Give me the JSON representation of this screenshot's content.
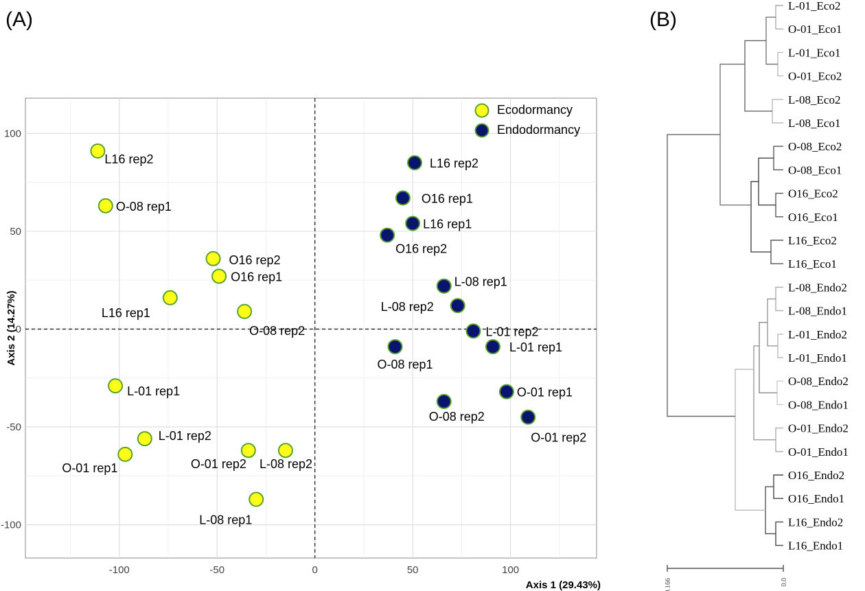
{
  "panel_a_label": "(A)",
  "panel_b_label": "(B)",
  "chart_data": [
    {
      "type": "scatter",
      "xlabel": "Axis 1 (29.43%)",
      "ylabel": "Axis 2 (14.27%)",
      "xlim": [
        -148,
        144
      ],
      "ylim": [
        -117,
        118
      ],
      "xticks": [
        -100,
        -50,
        0,
        50,
        100
      ],
      "yticks": [
        -100,
        -50,
        0,
        50,
        100
      ],
      "grid": true,
      "legend_position": "top-right",
      "colors": {
        "Ecodormancy": "#ffff1a",
        "Endodormancy": "#0a1470",
        "marker_edge": "#5aa02c"
      },
      "series": [
        {
          "name": "Ecodormancy",
          "points": [
            {
              "label": "L16 rep2",
              "x": -111,
              "y": 91
            },
            {
              "label": "O-08 rep1",
              "x": -107,
              "y": 63
            },
            {
              "label": "O16 rep2",
              "x": -52,
              "y": 36
            },
            {
              "label": "O16 rep1",
              "x": -49,
              "y": 27
            },
            {
              "label": "L16 rep1",
              "x": -74,
              "y": 16
            },
            {
              "label": "O-08 rep2",
              "x": -36,
              "y": 9
            },
            {
              "label": "L-01 rep1",
              "x": -102,
              "y": -29
            },
            {
              "label": "L-01 rep2",
              "x": -87,
              "y": -56
            },
            {
              "label": "O-01 rep1",
              "x": -97,
              "y": -64
            },
            {
              "label": "O-01 rep2",
              "x": -34,
              "y": -62
            },
            {
              "label": "L-08 rep2",
              "x": -15,
              "y": -62
            },
            {
              "label": "L-08 rep1",
              "x": -30,
              "y": -87
            }
          ]
        },
        {
          "name": "Endodormancy",
          "points": [
            {
              "label": "L16 rep2",
              "x": 51,
              "y": 85
            },
            {
              "label": "O16 rep1",
              "x": 45,
              "y": 67
            },
            {
              "label": "L16 rep1",
              "x": 50,
              "y": 54
            },
            {
              "label": "O16 rep2",
              "x": 37,
              "y": 48
            },
            {
              "label": "L-08 rep1",
              "x": 66,
              "y": 22
            },
            {
              "label": "L-08 rep2",
              "x": 73,
              "y": 12
            },
            {
              "label": "L-01 rep2",
              "x": 81,
              "y": -1
            },
            {
              "label": "L-01 rep1",
              "x": 91,
              "y": -9
            },
            {
              "label": "O-08 rep1",
              "x": 41,
              "y": -9
            },
            {
              "label": "O-01 rep1",
              "x": 98,
              "y": -32
            },
            {
              "label": "O-08 rep2",
              "x": 66,
              "y": -37
            },
            {
              "label": "O-01 rep2",
              "x": 109,
              "y": -45
            }
          ]
        }
      ]
    },
    {
      "type": "dendrogram",
      "leaves": [
        "L-01_Eco2",
        "O-01_Eco1",
        "L-01_Eco1",
        "O-01_Eco2",
        "L-08_Eco2",
        "L-08_Eco1",
        "O-08_Eco2",
        "O-08_Eco1",
        "O16_Eco2",
        "O16_Eco1",
        "L16_Eco2",
        "L16_Eco1",
        "L-08_Endo2",
        "L-08_Endo1",
        "L-01_Endo2",
        "L-01_Endo1",
        "O-08_Endo2",
        "O-08_Endo1",
        "O-01_Endo2",
        "O-01_Endo1",
        "O16_Endo2",
        "O16_Endo1",
        "L16_Endo2",
        "L16_Endo1"
      ],
      "scale_labels": [
        "0.166",
        "0.0"
      ]
    }
  ]
}
